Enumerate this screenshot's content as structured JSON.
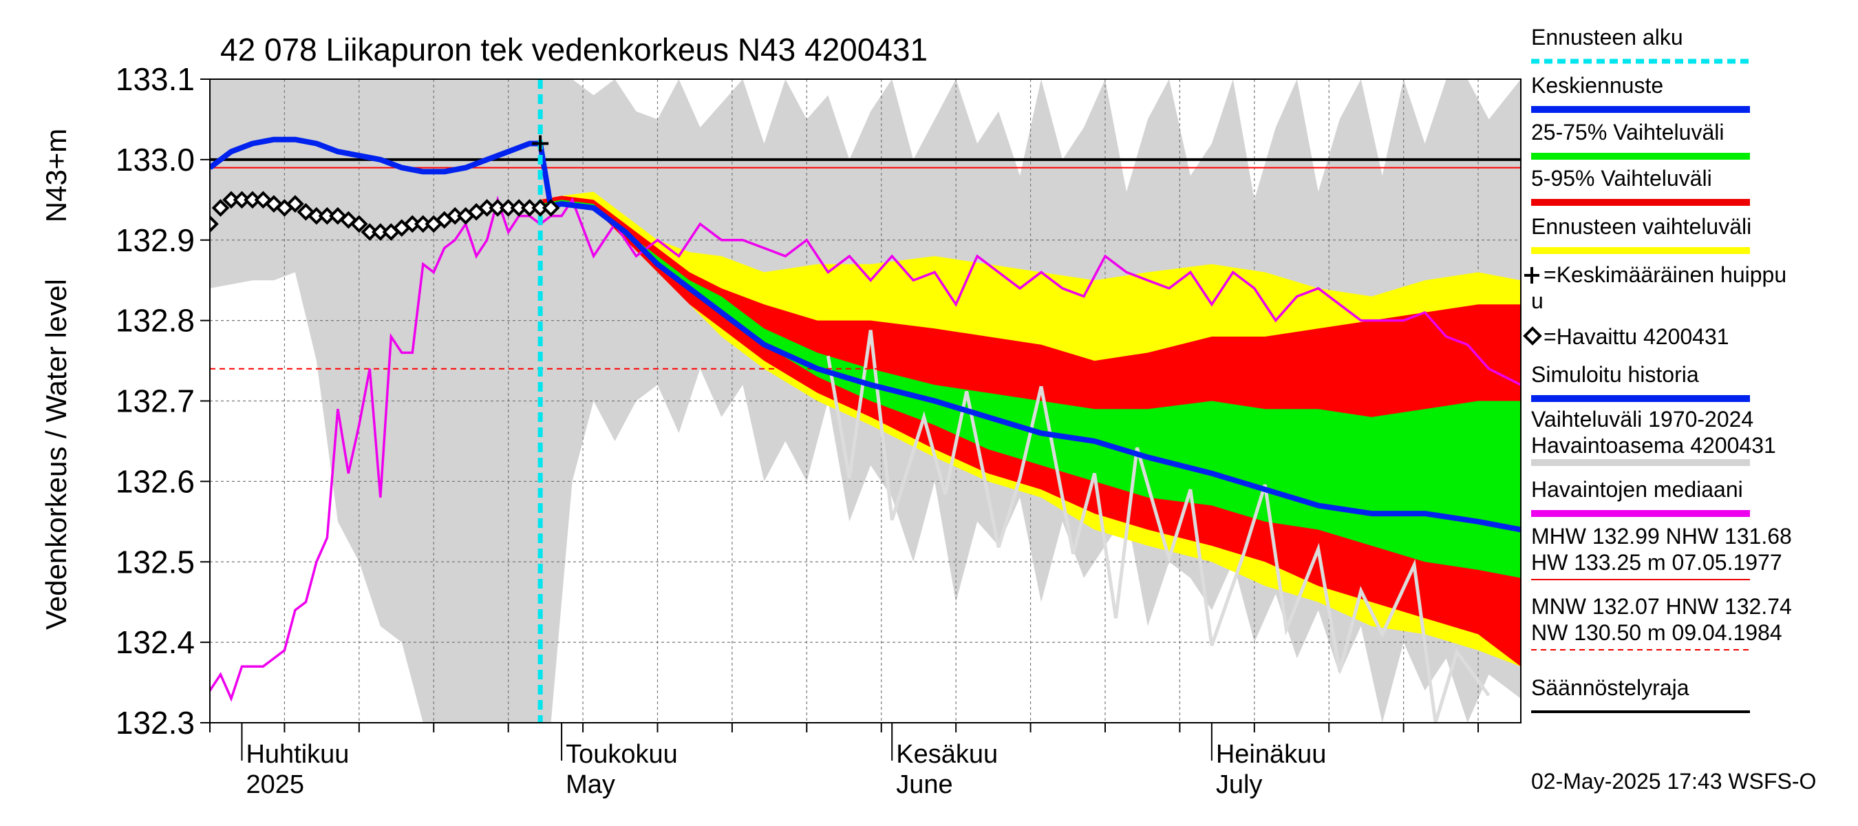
{
  "chart_data": {
    "type": "area",
    "title": "42 078 Liikapuron tek vedenkorkeus N43 4200431",
    "ylabel": "Vedenkorkeus / Water level",
    "yunit": "N43+m",
    "ylim": [
      132.3,
      133.1
    ],
    "yticks": [
      "132.3",
      "132.4",
      "132.5",
      "132.6",
      "132.7",
      "132.8",
      "132.9",
      "133.0",
      "133.1"
    ],
    "xlim": [
      "2025-03-29",
      "2025-07-30"
    ],
    "forecast_start": "2025-04-29",
    "month_labels": [
      {
        "fi": "Huhtikuu",
        "en": "2025",
        "date": "2025-04-01"
      },
      {
        "fi": "Toukokuu",
        "en": "May",
        "date": "2025-05-01"
      },
      {
        "fi": "Kesäkuu",
        "en": "June",
        "date": "2025-06-01"
      },
      {
        "fi": "Heinäkuu",
        "en": "July",
        "date": "2025-07-01"
      }
    ],
    "hlines": [
      {
        "name": "Säännöstelyraja",
        "value": 133.0,
        "color": "#000000",
        "style": "solid"
      },
      {
        "name": "MHW",
        "value": 132.99,
        "color": "#ff0000",
        "style": "solid"
      },
      {
        "name": "HNW",
        "value": 132.74,
        "color": "#ff0000",
        "style": "dashed"
      }
    ],
    "history_band": {
      "name": "Vaihteluväli 1970-2024",
      "color": "#d3d3d3",
      "x": [
        "03-29",
        "04-02",
        "04-04",
        "04-06",
        "04-08",
        "04-10",
        "04-12",
        "04-14",
        "04-16",
        "04-18",
        "04-20",
        "04-22",
        "04-24",
        "04-26",
        "04-28",
        "04-30",
        "05-02",
        "05-04",
        "05-06",
        "05-08",
        "05-10",
        "05-12",
        "05-14",
        "05-16",
        "05-18",
        "05-20",
        "05-22",
        "05-24",
        "05-26",
        "05-28",
        "05-30",
        "06-01",
        "06-03",
        "06-05",
        "06-07",
        "06-09",
        "06-11",
        "06-13",
        "06-15",
        "06-17",
        "06-19",
        "06-21",
        "06-23",
        "06-25",
        "06-27",
        "06-29",
        "07-01",
        "07-03",
        "07-05",
        "07-07",
        "07-09",
        "07-11",
        "07-13",
        "07-15",
        "07-17",
        "07-19",
        "07-21",
        "07-23",
        "07-25",
        "07-27",
        "07-30"
      ],
      "low": [
        132.84,
        132.85,
        132.85,
        132.86,
        132.75,
        132.55,
        132.5,
        132.42,
        132.4,
        132.3,
        132.3,
        132.3,
        132.3,
        132.3,
        132.3,
        132.3,
        132.6,
        132.7,
        132.65,
        132.7,
        132.72,
        132.66,
        132.74,
        132.68,
        132.72,
        132.6,
        132.65,
        132.6,
        132.7,
        132.55,
        132.62,
        132.58,
        132.5,
        132.6,
        132.45,
        132.55,
        132.52,
        132.58,
        132.45,
        132.55,
        132.48,
        132.52,
        132.56,
        132.42,
        132.5,
        132.48,
        132.44,
        132.5,
        132.4,
        132.46,
        132.38,
        132.44,
        132.36,
        132.42,
        132.3,
        132.4,
        132.34,
        132.38,
        132.3,
        132.36,
        132.33
      ],
      "high": [
        133.1,
        133.1,
        133.1,
        133.1,
        133.1,
        133.1,
        133.1,
        133.1,
        133.1,
        133.1,
        133.1,
        133.1,
        133.1,
        133.1,
        133.1,
        133.1,
        133.1,
        133.08,
        133.1,
        133.06,
        133.05,
        133.1,
        133.04,
        133.07,
        133.1,
        133.02,
        133.1,
        133.05,
        133.08,
        133.0,
        133.06,
        133.1,
        133.0,
        133.05,
        133.1,
        133.02,
        133.06,
        132.98,
        133.1,
        133.0,
        133.04,
        133.1,
        132.96,
        133.05,
        133.1,
        132.98,
        133.02,
        133.1,
        132.95,
        133.04,
        133.1,
        132.96,
        133.05,
        133.1,
        132.98,
        133.1,
        133.02,
        133.1,
        133.1,
        133.05,
        133.1
      ]
    },
    "forecast": {
      "x": [
        "04-29",
        "05-01",
        "05-04",
        "05-07",
        "05-10",
        "05-13",
        "05-16",
        "05-20",
        "05-25",
        "05-30",
        "06-05",
        "06-10",
        "06-15",
        "06-20",
        "06-25",
        "07-01",
        "07-06",
        "07-11",
        "07-16",
        "07-21",
        "07-26",
        "07-30"
      ],
      "yellow_low": [
        132.94,
        132.945,
        132.94,
        132.9,
        132.86,
        132.82,
        132.78,
        132.74,
        132.7,
        132.67,
        132.63,
        132.6,
        132.58,
        132.54,
        132.52,
        132.5,
        132.47,
        132.45,
        132.42,
        132.41,
        132.39,
        132.37
      ],
      "yellow_high": [
        132.95,
        132.955,
        132.96,
        132.93,
        132.9,
        132.885,
        132.88,
        132.86,
        132.87,
        132.87,
        132.88,
        132.87,
        132.86,
        132.85,
        132.86,
        132.87,
        132.86,
        132.84,
        132.83,
        132.85,
        132.86,
        132.85
      ],
      "red_low": [
        132.94,
        132.945,
        132.94,
        132.9,
        132.86,
        132.82,
        132.79,
        132.75,
        132.71,
        132.68,
        132.64,
        132.61,
        132.59,
        132.56,
        132.54,
        132.52,
        132.5,
        132.47,
        132.45,
        132.43,
        132.41,
        132.37
      ],
      "red_high": [
        132.95,
        132.955,
        132.95,
        132.92,
        132.89,
        132.86,
        132.84,
        132.82,
        132.8,
        132.8,
        132.79,
        132.78,
        132.77,
        132.75,
        132.76,
        132.78,
        132.78,
        132.79,
        132.8,
        132.81,
        132.82,
        132.82
      ],
      "green_low": [
        132.94,
        132.945,
        132.94,
        132.905,
        132.87,
        132.84,
        132.81,
        132.77,
        132.73,
        132.7,
        132.67,
        132.64,
        132.62,
        132.6,
        132.58,
        132.57,
        132.55,
        132.54,
        132.52,
        132.5,
        132.49,
        132.48
      ],
      "green_high": [
        132.945,
        132.95,
        132.945,
        132.91,
        132.88,
        132.85,
        132.83,
        132.79,
        132.76,
        132.74,
        132.72,
        132.71,
        132.7,
        132.69,
        132.69,
        132.7,
        132.69,
        132.69,
        132.68,
        132.69,
        132.7,
        132.7
      ],
      "mean": [
        132.94,
        132.945,
        132.94,
        132.91,
        132.87,
        132.84,
        132.81,
        132.77,
        132.74,
        132.72,
        132.7,
        132.68,
        132.66,
        132.65,
        132.63,
        132.61,
        132.59,
        132.57,
        132.56,
        132.56,
        132.55,
        132.54
      ]
    },
    "simulated_history": {
      "name": "Simuloitu historia",
      "x": [
        "03-29",
        "03-31",
        "04-02",
        "04-04",
        "04-06",
        "04-08",
        "04-10",
        "04-12",
        "04-14",
        "04-16",
        "04-18",
        "04-20",
        "04-22",
        "04-24",
        "04-26",
        "04-28",
        "04-29",
        "04-30"
      ],
      "values": [
        132.99,
        133.01,
        133.02,
        133.025,
        133.025,
        133.02,
        133.01,
        133.005,
        133.0,
        132.99,
        132.985,
        132.985,
        132.99,
        133.0,
        133.01,
        133.02,
        133.02,
        132.94
      ]
    },
    "peak_marker": {
      "name": "Keskimääräinen huippu",
      "x": "04-29",
      "value": 133.02
    },
    "observed": {
      "name": "Havaittu 4200431",
      "x": [
        "03-29",
        "03-30",
        "03-31",
        "04-01",
        "04-02",
        "04-03",
        "04-04",
        "04-05",
        "04-06",
        "04-07",
        "04-08",
        "04-09",
        "04-10",
        "04-11",
        "04-12",
        "04-13",
        "04-14",
        "04-15",
        "04-16",
        "04-17",
        "04-18",
        "04-19",
        "04-20",
        "04-21",
        "04-22",
        "04-23",
        "04-24",
        "04-25",
        "04-26",
        "04-27",
        "04-28",
        "04-29",
        "04-30"
      ],
      "values": [
        132.92,
        132.94,
        132.95,
        132.95,
        132.95,
        132.95,
        132.945,
        132.94,
        132.945,
        132.935,
        132.93,
        132.93,
        132.93,
        132.925,
        132.92,
        132.91,
        132.91,
        132.91,
        132.915,
        132.92,
        132.92,
        132.92,
        132.925,
        132.93,
        132.93,
        132.935,
        132.94,
        132.94,
        132.94,
        132.94,
        132.94,
        132.94,
        132.94
      ]
    },
    "median": {
      "name": "Havaintojen mediaani",
      "x": [
        "03-29",
        "03-30",
        "03-31",
        "04-01",
        "04-02",
        "04-03",
        "04-04",
        "04-05",
        "04-06",
        "04-07",
        "04-08",
        "04-09",
        "04-10",
        "04-11",
        "04-12",
        "04-13",
        "04-14",
        "04-15",
        "04-16",
        "04-17",
        "04-18",
        "04-19",
        "04-20",
        "04-21",
        "04-22",
        "04-23",
        "04-24",
        "04-25",
        "04-26",
        "04-27",
        "04-28",
        "04-29",
        "04-30",
        "05-01",
        "05-02",
        "05-04",
        "05-06",
        "05-08",
        "05-10",
        "05-12",
        "05-14",
        "05-16",
        "05-18",
        "05-20",
        "05-22",
        "05-24",
        "05-26",
        "05-28",
        "05-30",
        "06-01",
        "06-03",
        "06-05",
        "06-07",
        "06-09",
        "06-11",
        "06-13",
        "06-15",
        "06-17",
        "06-19",
        "06-21",
        "06-23",
        "06-25",
        "06-27",
        "06-29",
        "07-01",
        "07-03",
        "07-05",
        "07-07",
        "07-09",
        "07-11",
        "07-13",
        "07-15",
        "07-17",
        "07-19",
        "07-21",
        "07-23",
        "07-25",
        "07-27",
        "07-30"
      ],
      "values": [
        132.34,
        132.36,
        132.33,
        132.37,
        132.37,
        132.37,
        132.38,
        132.39,
        132.44,
        132.45,
        132.5,
        132.53,
        132.69,
        132.61,
        132.67,
        132.74,
        132.58,
        132.78,
        132.76,
        132.76,
        132.87,
        132.86,
        132.89,
        132.9,
        132.92,
        132.88,
        132.9,
        132.95,
        132.91,
        132.93,
        132.93,
        132.92,
        132.93,
        132.93,
        132.95,
        132.88,
        132.92,
        132.88,
        132.9,
        132.88,
        132.92,
        132.9,
        132.9,
        132.89,
        132.88,
        132.9,
        132.86,
        132.88,
        132.85,
        132.88,
        132.85,
        132.86,
        132.82,
        132.88,
        132.86,
        132.84,
        132.86,
        132.84,
        132.83,
        132.88,
        132.86,
        132.85,
        132.84,
        132.86,
        132.82,
        132.86,
        132.84,
        132.8,
        132.83,
        132.84,
        132.82,
        132.8,
        132.8,
        132.8,
        132.81,
        132.78,
        132.77,
        132.74,
        132.72
      ]
    },
    "legend": [
      {
        "label": "Ennusteen alku",
        "color": "#00e5ee",
        "style": "dotted"
      },
      {
        "label": "Keskiennuste",
        "color": "#0022ee",
        "style": "solid"
      },
      {
        "label": "25-75% Vaihteluväli",
        "color": "#00ee00",
        "style": "solid"
      },
      {
        "label": "5-95% Vaihteluväli",
        "color": "#ee0000",
        "style": "solid"
      },
      {
        "label": "Ennusteen vaihteluväli",
        "color": "#ffff00",
        "style": "solid"
      },
      {
        "label": "=Keskimääräinen huippu",
        "label2": "u",
        "color": "#000000",
        "style": "plus"
      },
      {
        "label": "=Havaittu 4200431",
        "color": "#000000",
        "style": "diamond"
      },
      {
        "label": "Simuloitu historia",
        "color": "#0022ee",
        "style": "solid"
      },
      {
        "label": "Vaihteluväli 1970-2024",
        "label2": " Havaintoasema 4200431",
        "color": "#d3d3d3",
        "style": "solid"
      },
      {
        "label": "Havaintojen mediaani",
        "color": "#ee00ee",
        "style": "solid"
      },
      {
        "label": "MHW 132.99 NHW 131.68",
        "label2": "HW 133.25 m 07.05.1977",
        "color": "#ee0000",
        "style": "solid"
      },
      {
        "label": "MNW 132.07 HNW 132.74",
        "label2": "NW 130.50 m 09.04.1984",
        "color": "#ee0000",
        "style": "dashed"
      },
      {
        "label": "Säännöstelyraja",
        "color": "#000000",
        "style": "solid"
      }
    ],
    "timestamp": "02-May-2025 17:43 WSFS-O"
  }
}
